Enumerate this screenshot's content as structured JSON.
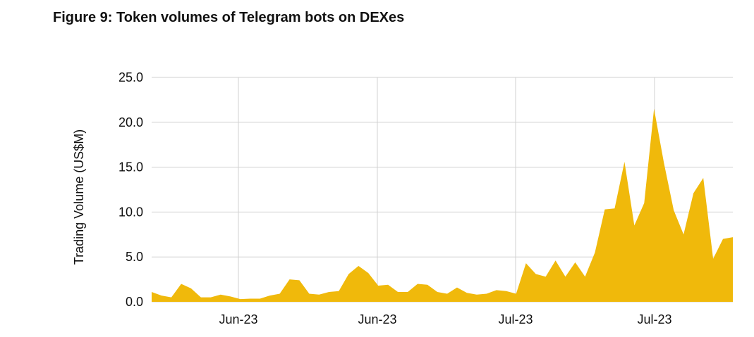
{
  "chart_data": {
    "type": "area",
    "title": "Figure 9: Token volumes of Telegram bots on DEXes",
    "xlabel": "",
    "ylabel": "Trading Volume (US$M)",
    "ylim": [
      0,
      25
    ],
    "y_ticks": [
      "0.0",
      "5.0",
      "10.0",
      "15.0",
      "20.0",
      "25.0"
    ],
    "x_tick_labels": [
      "Jun-23",
      "Jun-23",
      "Jul-23",
      "Jul-23"
    ],
    "grid": true,
    "color": "#F0B90B",
    "values": [
      1.1,
      0.7,
      0.5,
      2.0,
      1.5,
      0.5,
      0.5,
      0.8,
      0.6,
      0.3,
      0.35,
      0.35,
      0.7,
      0.9,
      2.5,
      2.4,
      0.9,
      0.8,
      1.1,
      1.2,
      3.1,
      4.0,
      3.2,
      1.8,
      1.9,
      1.1,
      1.1,
      2.0,
      1.9,
      1.1,
      0.9,
      1.6,
      1.0,
      0.8,
      0.9,
      1.3,
      1.2,
      0.9,
      4.3,
      3.1,
      2.8,
      4.6,
      2.8,
      4.4,
      2.8,
      5.5,
      10.3,
      10.4,
      15.6,
      8.5,
      11.0,
      21.5,
      15.5,
      10.2,
      7.5,
      12.1,
      13.8,
      4.8,
      7.0,
      7.2
    ]
  }
}
